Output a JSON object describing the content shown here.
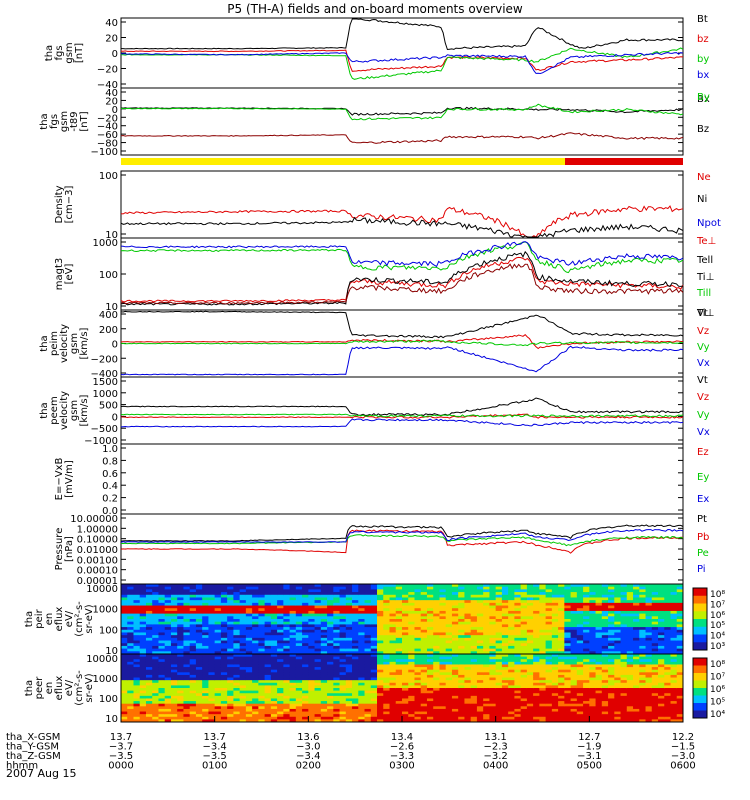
{
  "title": "P5 (TH-A) fields and on-board moments overview",
  "date_label": "2007 Aug 15",
  "colors": {
    "black": "#000000",
    "red": "#e00000",
    "green": "#00c800",
    "blue": "#0000e0",
    "darkred": "#8b0000",
    "yellow": "#ffee00"
  },
  "chart_data": [
    {
      "type": "line",
      "panel": "fgs_gsm",
      "ylabel": [
        "tha",
        "fgs",
        "gsm",
        "[nT]"
      ],
      "yticks": [
        "40",
        "20",
        "0",
        "−20",
        "−40"
      ],
      "ylim": [
        -40,
        40
      ],
      "series": [
        {
          "name": "Bt",
          "color": "black",
          "x": [
            0,
            0.2,
            0.4,
            0.41,
            0.57,
            0.58,
            0.72,
            0.74,
            0.8,
            0.82,
            0.9,
            1.0
          ],
          "y": [
            5,
            5,
            6,
            40,
            30,
            5,
            8,
            30,
            10,
            5,
            15,
            15
          ]
        },
        {
          "name": "bz",
          "color": "red",
          "x": [
            0,
            0.2,
            0.4,
            0.41,
            0.57,
            0.58,
            0.72,
            0.74,
            0.8,
            0.9,
            1.0
          ],
          "y": [
            2,
            2,
            3,
            -20,
            -15,
            -5,
            -6,
            -20,
            -10,
            -8,
            -5
          ]
        },
        {
          "name": "by",
          "color": "green",
          "x": [
            0,
            0.2,
            0.4,
            0.41,
            0.57,
            0.58,
            0.72,
            0.74,
            0.8,
            0.9,
            1.0
          ],
          "y": [
            -2,
            -2,
            -3,
            -30,
            -20,
            -5,
            -8,
            -10,
            5,
            -5,
            5
          ]
        },
        {
          "name": "bx",
          "color": "blue",
          "x": [
            0,
            0.2,
            0.4,
            0.41,
            0.57,
            0.58,
            0.72,
            0.74,
            0.8,
            0.9,
            1.0
          ],
          "y": [
            -1,
            -2,
            0,
            -10,
            -5,
            -3,
            -4,
            -25,
            -5,
            -2,
            0
          ]
        }
      ]
    },
    {
      "type": "line",
      "panel": "fgs_gsm_t89",
      "ylabel": [
        "tha",
        "fgs",
        "gsm",
        "-t89",
        "[nT]"
      ],
      "yticks": [
        "40",
        "20",
        "0",
        "−20",
        "−40",
        "−60",
        "−80",
        "−100"
      ],
      "ylim": [
        -100,
        40
      ],
      "series": [
        {
          "name": "Bx",
          "color": "black",
          "x": [
            0,
            0.2,
            0.4,
            0.41,
            0.57,
            0.58,
            0.72,
            0.74,
            0.8,
            0.9,
            1.0
          ],
          "y": [
            -2,
            -2,
            -3,
            -15,
            -12,
            -2,
            -4,
            -5,
            -5,
            -10,
            -5
          ]
        },
        {
          "name": "Bz",
          "color": "darkred",
          "x": [
            0,
            0.2,
            0.4,
            0.41,
            0.57,
            0.58,
            0.72,
            0.74,
            0.8,
            0.9,
            1.0
          ],
          "y": [
            -60,
            -60,
            -58,
            -75,
            -70,
            -62,
            -62,
            -65,
            -55,
            -65,
            -65
          ]
        },
        {
          "name": "By",
          "color": "green",
          "x": [
            0,
            0.2,
            0.4,
            0.41,
            0.57,
            0.58,
            0.72,
            0.74,
            0.8,
            0.9,
            1.0
          ],
          "y": [
            -3,
            -3,
            -4,
            -25,
            -22,
            -4,
            -5,
            5,
            -10,
            -5,
            -15
          ]
        }
      ]
    },
    {
      "type": "line",
      "panel": "density",
      "ylabel": [
        "Density",
        "[cm−3]"
      ],
      "yticks": [
        "100",
        "10"
      ],
      "scale": "log",
      "ylim": [
        5,
        300
      ],
      "series": [
        {
          "name": "Ne",
          "color": "red",
          "x": [
            0,
            0.2,
            0.4,
            0.41,
            0.57,
            0.58,
            0.72,
            0.74,
            0.8,
            0.9,
            1.0
          ],
          "y": [
            23,
            25,
            26,
            20,
            15,
            30,
            5,
            5,
            20,
            30,
            30
          ]
        },
        {
          "name": "Ni",
          "color": "black",
          "x": [
            0,
            0.2,
            0.4,
            0.41,
            0.57,
            0.58,
            0.72,
            0.74,
            0.8,
            0.9,
            1.0
          ],
          "y": [
            12,
            12,
            13,
            15,
            12,
            12,
            5,
            5,
            8,
            10,
            8
          ]
        },
        {
          "name": "Npot",
          "color": "blue",
          "x": [],
          "y": []
        }
      ]
    },
    {
      "type": "line",
      "panel": "temperature",
      "ylabel": [
        "magt3",
        "[eV]"
      ],
      "yticks": [
        "1000",
        "100",
        "10"
      ],
      "scale": "log",
      "ylim": [
        8,
        1200
      ],
      "series": [
        {
          "name": "Te⊥",
          "color": "red",
          "x": [
            0,
            0.2,
            0.4,
            0.41,
            0.57,
            0.58,
            0.72,
            0.74,
            0.8,
            0.9,
            1.0
          ],
          "y": [
            15,
            15,
            16,
            60,
            45,
            45,
            300,
            60,
            50,
            45,
            40
          ]
        },
        {
          "name": "Tell",
          "color": "black",
          "x": [
            0,
            0.2,
            0.4,
            0.41,
            0.57,
            0.58,
            0.72,
            0.74,
            0.8,
            0.9,
            1.0
          ],
          "y": [
            12,
            12,
            13,
            70,
            55,
            55,
            400,
            80,
            60,
            50,
            50
          ]
        },
        {
          "name": "Ti⊥",
          "color": "darkred",
          "x": [
            0,
            0.2,
            0.4,
            0.41,
            0.57,
            0.58,
            0.72,
            0.74,
            0.8,
            0.9,
            1.0
          ],
          "y": [
            13,
            13,
            14,
            40,
            30,
            30,
            200,
            40,
            30,
            30,
            30
          ]
        },
        {
          "name": "Till",
          "color": "green",
          "x": [
            0,
            0.2,
            0.4,
            0.41,
            0.57,
            0.58,
            0.72,
            0.74,
            0.8,
            0.9,
            1.0
          ],
          "y": [
            500,
            500,
            520,
            160,
            150,
            160,
            800,
            250,
            120,
            250,
            250
          ]
        },
        {
          "name": "Ti⊥ blue",
          "color": "blue",
          "x": [
            0,
            0.2,
            0.4,
            0.41,
            0.57,
            0.58,
            0.72,
            0.74,
            0.8,
            0.9,
            1.0
          ],
          "y": [
            650,
            650,
            660,
            220,
            200,
            220,
            900,
            300,
            200,
            350,
            300
          ]
        }
      ]
    },
    {
      "type": "line",
      "panel": "peim_velocity",
      "ylabel": [
        "tha",
        "peim",
        "velocity",
        "gsm",
        "[km/s]"
      ],
      "yticks": [
        "400",
        "200",
        "0",
        "−200",
        "−400"
      ],
      "ylim": [
        -400,
        400
      ],
      "series": [
        {
          "name": "Vt",
          "color": "black",
          "x": [
            0,
            0.2,
            0.4,
            0.41,
            0.57,
            0.58,
            0.72,
            0.74,
            0.8,
            0.9,
            1.0
          ],
          "y": [
            380,
            380,
            370,
            100,
            80,
            80,
            300,
            350,
            120,
            100,
            100
          ]
        },
        {
          "name": "Vz",
          "color": "red",
          "x": [
            0,
            0.2,
            0.4,
            0.41,
            0.57,
            0.58,
            0.72,
            0.74,
            0.8,
            0.9,
            1.0
          ],
          "y": [
            20,
            20,
            20,
            40,
            30,
            20,
            100,
            -50,
            0,
            20,
            20
          ]
        },
        {
          "name": "Vy",
          "color": "green",
          "x": [
            0,
            0.2,
            0.4,
            0.41,
            0.57,
            0.58,
            0.72,
            0.74,
            0.8,
            0.9,
            1.0
          ],
          "y": [
            0,
            0,
            0,
            20,
            30,
            20,
            -20,
            0,
            10,
            10,
            10
          ]
        },
        {
          "name": "Vx",
          "color": "blue",
          "x": [
            0,
            0.2,
            0.4,
            0.41,
            0.57,
            0.58,
            0.72,
            0.74,
            0.8,
            0.9,
            1.0
          ],
          "y": [
            -370,
            -370,
            -370,
            -50,
            -60,
            -40,
            -300,
            -330,
            -40,
            -80,
            -80
          ]
        }
      ]
    },
    {
      "type": "line",
      "panel": "peem_velocity",
      "ylabel": [
        "tha",
        "peem",
        "velocity",
        "gsm",
        "[km/s]"
      ],
      "yticks": [
        "1500",
        "1000",
        "500",
        "0",
        "−500",
        "−1000"
      ],
      "ylim": [
        -1000,
        1500
      ],
      "series": [
        {
          "name": "Vt",
          "color": "black",
          "x": [
            0,
            0.2,
            0.4,
            0.41,
            0.57,
            0.58,
            0.72,
            0.74,
            0.8,
            0.9,
            1.0
          ],
          "y": [
            400,
            400,
            400,
            100,
            100,
            100,
            600,
            700,
            200,
            200,
            200
          ]
        },
        {
          "name": "Vz",
          "color": "red",
          "x": [
            0,
            0.2,
            0.4,
            0.41,
            0.57,
            0.58,
            0.72,
            0.74,
            0.8,
            0.9,
            1.0
          ],
          "y": [
            0,
            0,
            0,
            0,
            0,
            0,
            100,
            0,
            0,
            0,
            0
          ]
        },
        {
          "name": "Vy",
          "color": "green",
          "x": [
            0,
            0.2,
            0.4,
            0.41,
            0.57,
            0.58,
            0.72,
            0.74,
            0.8,
            0.9,
            1.0
          ],
          "y": [
            100,
            100,
            100,
            50,
            50,
            50,
            50,
            50,
            50,
            50,
            50
          ]
        },
        {
          "name": "Vx",
          "color": "blue",
          "x": [
            0,
            0.2,
            0.4,
            0.41,
            0.57,
            0.58,
            0.72,
            0.74,
            0.8,
            0.9,
            1.0
          ],
          "y": [
            -350,
            -350,
            -350,
            -100,
            -100,
            -100,
            -300,
            -300,
            -200,
            -200,
            -200
          ]
        }
      ]
    },
    {
      "type": "line",
      "panel": "efield",
      "ylabel": [
        "E=−VxB",
        "[mV/m]"
      ],
      "yticks": [
        "1.0",
        "0.8",
        "0.6",
        "0.4",
        "0.2",
        "0.0"
      ],
      "ylim": [
        0,
        1
      ],
      "series": [
        {
          "name": "Ez",
          "color": "red",
          "x": [],
          "y": []
        },
        {
          "name": "Ey",
          "color": "green",
          "x": [],
          "y": []
        },
        {
          "name": "Ex",
          "color": "blue",
          "x": [],
          "y": []
        }
      ]
    },
    {
      "type": "line",
      "panel": "pressure",
      "ylabel": [
        "Pressure",
        "[nPa]"
      ],
      "yticks": [
        "10.00000",
        "1.00000",
        "0.10000",
        "0.01000",
        "0.00100",
        "0.00010",
        "0.00001"
      ],
      "scale": "log",
      "ylim": [
        1e-05,
        10
      ],
      "series": [
        {
          "name": "Pt",
          "color": "black",
          "x": [
            0,
            0.2,
            0.4,
            0.41,
            0.57,
            0.58,
            0.72,
            0.74,
            0.8,
            0.9,
            1.0
          ],
          "y": [
            0.05,
            0.05,
            0.08,
            0.9,
            0.7,
            0.1,
            0.4,
            0.2,
            0.1,
            1.0,
            1.0
          ]
        },
        {
          "name": "Pb",
          "color": "red",
          "x": [
            0,
            0.2,
            0.4,
            0.41,
            0.57,
            0.58,
            0.72,
            0.74,
            0.8,
            0.9,
            1.0
          ],
          "y": [
            0.01,
            0.01,
            0.005,
            0.4,
            0.3,
            0.02,
            0.04,
            0.02,
            0.005,
            0.08,
            0.1
          ]
        },
        {
          "name": "Pe",
          "color": "green",
          "x": [
            0,
            0.2,
            0.4,
            0.41,
            0.57,
            0.58,
            0.72,
            0.74,
            0.8,
            0.9,
            1.0
          ],
          "y": [
            0.03,
            0.03,
            0.04,
            0.15,
            0.12,
            0.05,
            0.1,
            0.05,
            0.02,
            0.1,
            0.1
          ]
        },
        {
          "name": "Pi",
          "color": "blue",
          "x": [
            0,
            0.2,
            0.4,
            0.41,
            0.57,
            0.58,
            0.72,
            0.74,
            0.8,
            0.9,
            1.0
          ],
          "y": [
            0.04,
            0.04,
            0.04,
            0.3,
            0.25,
            0.06,
            0.2,
            0.1,
            0.06,
            0.4,
            0.4
          ]
        }
      ]
    },
    {
      "type": "heatmap",
      "panel": "peir_en_eflux",
      "ylabel": [
        "tha",
        "peir",
        "en",
        "eflux",
        "eV/",
        "(cm²-s-",
        "sr-eV)"
      ],
      "yticks": [
        "10000",
        "1000",
        "100",
        "10"
      ],
      "colorbar_ticks": [
        "10⁸",
        "10⁷",
        "10⁶",
        "10⁵",
        "10⁴",
        "10³"
      ]
    },
    {
      "type": "heatmap",
      "panel": "peer_en_eflux",
      "ylabel": [
        "tha",
        "peer",
        "en",
        "eflux",
        "eV/",
        "(cm²-s-",
        "sr-eV)"
      ],
      "yticks": [
        "10000",
        "1000",
        "100",
        "10"
      ],
      "colorbar_ticks": [
        "10⁸",
        "10⁷",
        "10⁶",
        "10⁵",
        "10⁴"
      ]
    }
  ],
  "xaxis": {
    "rows": [
      {
        "label": "tha_X-GSM",
        "values": [
          "13.7",
          "13.7",
          "13.6",
          "13.4",
          "13.1",
          "12.7",
          "12.2"
        ]
      },
      {
        "label": "tha_Y-GSM",
        "values": [
          "−3.7",
          "−3.4",
          "−3.0",
          "−2.6",
          "−2.3",
          "−1.9",
          "−1.5"
        ]
      },
      {
        "label": "tha_Z-GSM",
        "values": [
          "−3.5",
          "−3.5",
          "−3.4",
          "−3.3",
          "−3.2",
          "−3.1",
          "−3.0"
        ]
      },
      {
        "label": "hhmm",
        "values": [
          "0000",
          "0100",
          "0200",
          "0300",
          "0400",
          "0500",
          "0600"
        ]
      }
    ]
  }
}
